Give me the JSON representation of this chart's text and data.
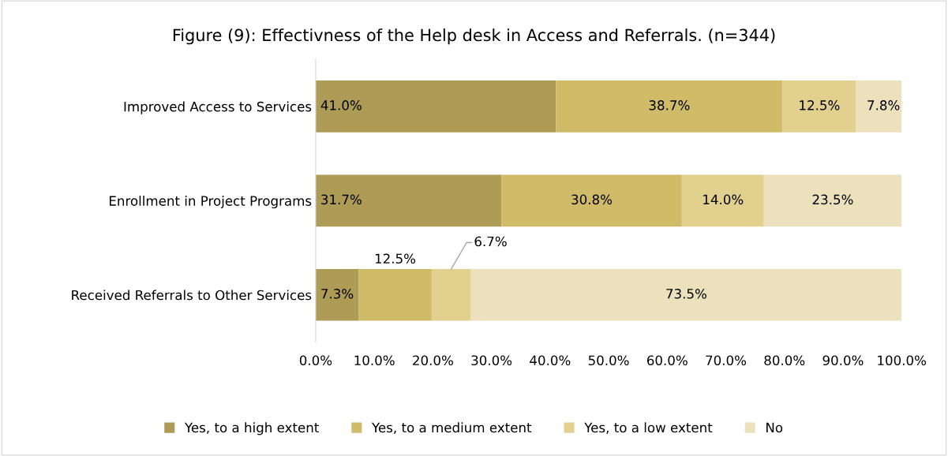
{
  "chart_data": {
    "type": "bar",
    "orientation": "horizontal",
    "stacked": true,
    "title": "Figure (9): Effectivness of the Help desk in Access and Referrals. (n=344)",
    "categories": [
      "Improved Access to Services",
      "Enrollment in Project Programs",
      "Received Referrals to Other Services"
    ],
    "series": [
      {
        "name": "Yes, to a high extent",
        "color": "#ad9b56",
        "values": [
          41.0,
          31.7,
          7.3
        ],
        "value_labels": [
          "41.0%",
          "31.7%",
          "7.3%"
        ]
      },
      {
        "name": "Yes, to a medium extent",
        "color": "#cfbb68",
        "values": [
          38.7,
          30.8,
          12.5
        ],
        "value_labels": [
          "38.7%",
          "30.8%",
          "12.5%"
        ]
      },
      {
        "name": "Yes, to a low extent",
        "color": "#e2d08f",
        "values": [
          12.5,
          14.0,
          6.7
        ],
        "value_labels": [
          "12.5%",
          "14.0%",
          "6.7%"
        ]
      },
      {
        "name": "No",
        "color": "#ece1bd",
        "values": [
          7.8,
          23.5,
          73.5
        ],
        "value_labels": [
          "7.8%",
          "23.5%",
          "73.5%"
        ]
      }
    ],
    "xlim": [
      0,
      100
    ],
    "xticks": [
      {
        "value": 0,
        "label": "0.0%"
      },
      {
        "value": 10,
        "label": "10.0%"
      },
      {
        "value": 20,
        "label": "20.0%"
      },
      {
        "value": 30,
        "label": "30.0%"
      },
      {
        "value": 40,
        "label": "40.0%"
      },
      {
        "value": 50,
        "label": "50.0%"
      },
      {
        "value": 60,
        "label": "60.0%"
      },
      {
        "value": 70,
        "label": "70.0%"
      },
      {
        "value": 80,
        "label": "80.0%"
      },
      {
        "value": 90,
        "label": "90.0%"
      },
      {
        "value": 100,
        "label": "100.0%"
      }
    ],
    "grid": false,
    "legend": "bottom"
  }
}
